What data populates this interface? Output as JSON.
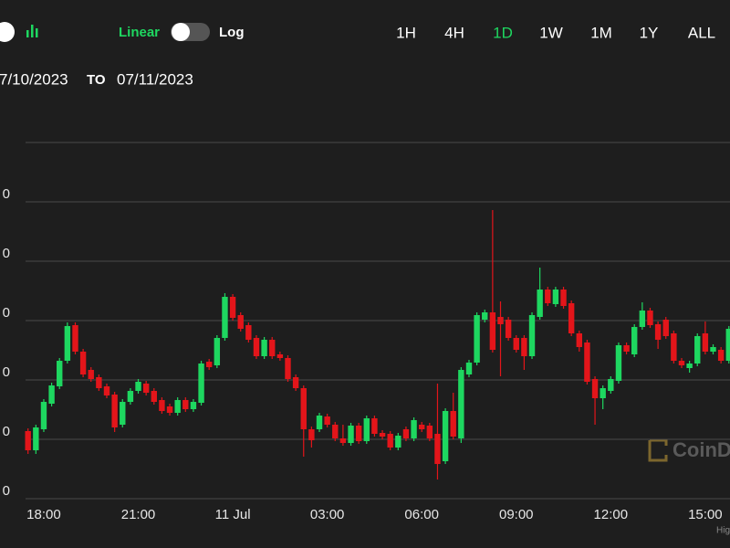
{
  "header": {
    "scale_options": [
      "Linear",
      "Log"
    ],
    "active_scale_index": 0,
    "ranges": [
      "1H",
      "4H",
      "1D",
      "1W",
      "1M",
      "1Y",
      "ALL"
    ],
    "active_range_index": 2,
    "from": "7/10/2023",
    "to_label": "TO",
    "to": "07/11/2023",
    "watermark": "CoinD",
    "footer": "Hig"
  },
  "chart_data": {
    "type": "candlestick",
    "up_color": "#1ed760",
    "down_color": "#e3151a",
    "grid": true,
    "categories": [
      null,
      null,
      "18:00",
      null,
      null,
      null,
      null,
      null,
      null,
      null,
      null,
      null,
      null,
      null,
      "21:00",
      null,
      null,
      null,
      null,
      null,
      null,
      null,
      null,
      null,
      null,
      null,
      "11 Jul",
      null,
      null,
      null,
      null,
      null,
      null,
      null,
      null,
      null,
      null,
      null,
      "03:00",
      null,
      null,
      null,
      null,
      null,
      null,
      null,
      null,
      null,
      null,
      null,
      "06:00",
      null,
      null,
      null,
      null,
      null,
      null,
      null,
      null,
      null,
      null,
      null,
      "09:00",
      null,
      null,
      null,
      null,
      null,
      null,
      null,
      null,
      null,
      null,
      null,
      "12:00",
      null,
      null,
      null,
      null,
      null,
      null,
      null,
      null,
      null,
      null,
      null,
      "15:00",
      null,
      null,
      null
    ],
    "open": [
      30148,
      30106,
      30152,
      30208,
      30246,
      30302,
      30380,
      30322,
      30282,
      30266,
      30246,
      30228,
      30162,
      30212,
      30236,
      30252,
      30236,
      30216,
      30202,
      30188,
      30216,
      30196,
      30210,
      30300,
      30292,
      30352,
      30442,
      30402,
      30380,
      30352,
      30312,
      30348,
      30316,
      30308,
      30266,
      30242,
      30152,
      30152,
      30180,
      30162,
      30132,
      30122,
      30160,
      30126,
      30176,
      30144,
      30142,
      30112,
      30152,
      30132,
      30162,
      30160,
      30142,
      30082,
      30192,
      30132,
      30272,
      30298,
      30392,
      30408,
      30398,
      30392,
      30352,
      30352,
      30312,
      30398,
      30458,
      30426,
      30458,
      30428,
      30362,
      30342,
      30262,
      30220,
      30236,
      30258,
      30336,
      30316,
      30376,
      30412,
      30382,
      30392,
      30362,
      30302,
      30286,
      30296,
      30362,
      30322,
      30326,
      30302
    ],
    "high": [
      30154,
      30162,
      30218,
      30254,
      30308,
      30386,
      30386,
      30328,
      30288,
      30272,
      30252,
      30234,
      30218,
      30242,
      30262,
      30258,
      30242,
      30222,
      30208,
      30222,
      30222,
      30218,
      30302,
      30306,
      30358,
      30450,
      30448,
      30408,
      30386,
      30358,
      30354,
      30354,
      30322,
      30314,
      30272,
      30248,
      30158,
      30188,
      30186,
      30168,
      30162,
      30166,
      30166,
      30182,
      30182,
      30150,
      30148,
      30144,
      30158,
      30178,
      30168,
      30166,
      30252,
      30198,
      30232,
      30288,
      30304,
      30408,
      30414,
      30632,
      30432,
      30398,
      30358,
      30358,
      30408,
      30506,
      30464,
      30464,
      30464,
      30434,
      30368,
      30348,
      30268,
      30248,
      30268,
      30342,
      30342,
      30382,
      30430,
      30418,
      30388,
      30398,
      30368,
      30308,
      30302,
      30362,
      30388,
      30338,
      30332,
      30378
    ],
    "low": [
      30098,
      30098,
      30146,
      30202,
      30240,
      30296,
      30316,
      30266,
      30256,
      30236,
      30220,
      30146,
      30156,
      30206,
      30230,
      30226,
      30206,
      30186,
      30182,
      30182,
      30190,
      30190,
      30204,
      30282,
      30286,
      30346,
      30390,
      30366,
      30342,
      30306,
      30306,
      30306,
      30302,
      30256,
      30236,
      30092,
      30112,
      30146,
      30156,
      30126,
      30116,
      30116,
      30120,
      30120,
      30136,
      30130,
      30106,
      30106,
      30126,
      30126,
      30146,
      30126,
      30042,
      30076,
      30130,
      30122,
      30266,
      30292,
      30386,
      30320,
      30268,
      30346,
      30320,
      30282,
      30306,
      30392,
      30422,
      30420,
      30416,
      30356,
      30322,
      30250,
      30162,
      30196,
      30230,
      30252,
      30316,
      30310,
      30370,
      30374,
      30328,
      30350,
      30296,
      30286,
      30276,
      30290,
      30316,
      30316,
      30296,
      30296
    ],
    "close": [
      30106,
      30156,
      30212,
      30248,
      30302,
      30378,
      30322,
      30272,
      30262,
      30242,
      30226,
      30156,
      30212,
      30236,
      30256,
      30232,
      30212,
      30192,
      30188,
      30216,
      30196,
      30212,
      30296,
      30288,
      30352,
      30442,
      30396,
      30372,
      30348,
      30312,
      30348,
      30312,
      30308,
      30262,
      30242,
      30152,
      30128,
      30182,
      30162,
      30132,
      30122,
      30160,
      30126,
      30176,
      30142,
      30136,
      30112,
      30138,
      30132,
      30172,
      30152,
      30132,
      30076,
      30192,
      30136,
      30282,
      30298,
      30402,
      30408,
      30326,
      30382,
      30352,
      30326,
      30312,
      30402,
      30458,
      30428,
      30458,
      30422,
      30362,
      30332,
      30256,
      30220,
      30242,
      30262,
      30336,
      30322,
      30376,
      30412,
      30380,
      30348,
      30356,
      30302,
      30292,
      30296,
      30356,
      30322,
      30332,
      30302,
      30372
    ],
    "ylim": [
      30000,
      30780
    ],
    "yticks": [
      {
        "value": 30000,
        "label": "0"
      },
      {
        "value": 30130,
        "label": "0"
      },
      {
        "value": 30260,
        "label": "0"
      },
      {
        "value": 30390,
        "label": "0"
      },
      {
        "value": 30520,
        "label": "0"
      },
      {
        "value": 30650,
        "label": "0"
      }
    ]
  }
}
